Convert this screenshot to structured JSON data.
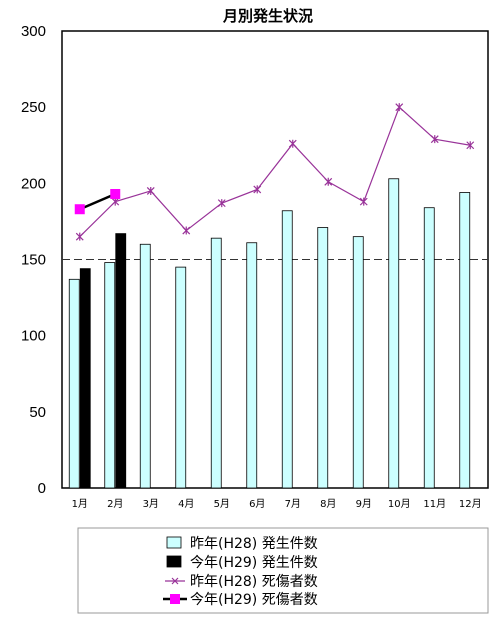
{
  "chart_data": {
    "type": "bar",
    "title": "月別発生状況",
    "categories": [
      "1月",
      "2月",
      "3月",
      "4月",
      "5月",
      "6月",
      "7月",
      "8月",
      "9月",
      "10月",
      "11月",
      "12月"
    ],
    "ylim": [
      0,
      300
    ],
    "yticks": [
      0,
      50,
      100,
      150,
      200,
      250,
      300
    ],
    "grid": false,
    "reference_line": 150,
    "legend_placement": "bottom",
    "series": [
      {
        "name": "昨年(H28) 発生件数",
        "kind": "bar",
        "color": "#ccffff",
        "values": [
          137,
          148,
          160,
          145,
          164,
          161,
          182,
          171,
          165,
          203,
          184,
          194
        ]
      },
      {
        "name": "今年(H29) 発生件数",
        "kind": "bar",
        "color": "#000000",
        "values": [
          144,
          167,
          null,
          null,
          null,
          null,
          null,
          null,
          null,
          null,
          null,
          null
        ]
      },
      {
        "name": "昨年(H28) 死傷者数",
        "kind": "line",
        "color": "#993399",
        "marker": "star",
        "values": [
          165,
          188,
          195,
          169,
          187,
          196,
          226,
          201,
          188,
          250,
          229,
          225
        ]
      },
      {
        "name": "今年(H29) 死傷者数",
        "kind": "line",
        "color": "#000000",
        "marker_color": "#ff00ff",
        "marker": "square",
        "values": [
          183,
          193,
          null,
          null,
          null,
          null,
          null,
          null,
          null,
          null,
          null,
          null
        ]
      }
    ]
  }
}
